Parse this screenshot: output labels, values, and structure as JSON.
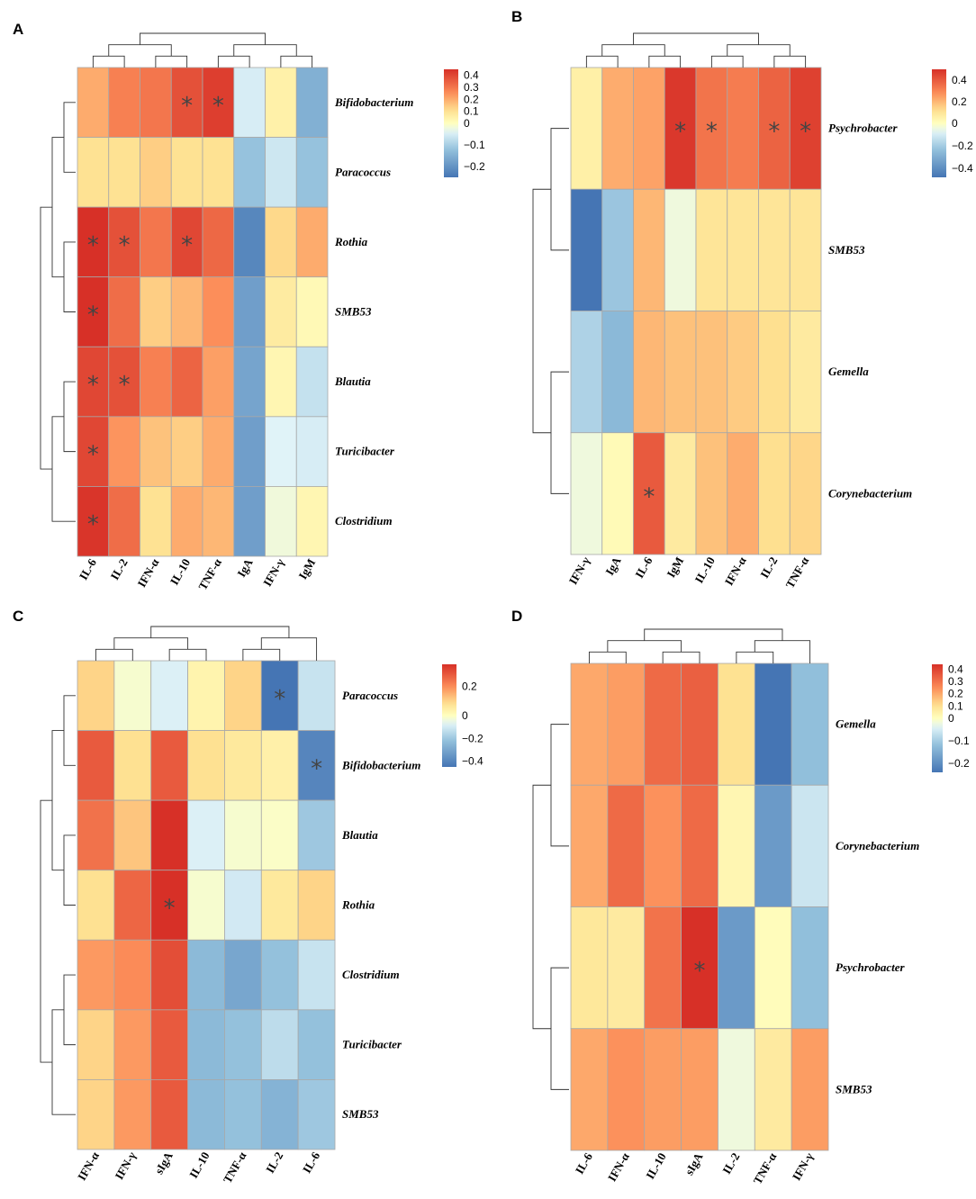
{
  "chart_data": [
    {
      "type": "heatmap",
      "panel": "A",
      "rows": [
        "Bifidobacterium",
        "Paracoccus",
        "Rothia",
        "SMB53",
        "Blautia",
        "Turicibacter",
        "Clostridium"
      ],
      "columns": [
        "IL-6",
        "IL-2",
        "IFN-α",
        "IL-10",
        "TNF-α",
        "IgA",
        "IFN-γ",
        "IgM"
      ],
      "values": [
        [
          0.2,
          0.28,
          0.3,
          0.38,
          0.42,
          -0.05,
          0.05,
          -0.15
        ],
        [
          0.1,
          0.1,
          0.14,
          0.1,
          0.1,
          -0.12,
          -0.06,
          -0.12
        ],
        [
          0.45,
          0.38,
          0.3,
          0.4,
          0.33,
          -0.22,
          0.12,
          0.2
        ],
        [
          0.45,
          0.32,
          0.14,
          0.18,
          0.25,
          -0.18,
          0.07,
          0.02
        ],
        [
          0.4,
          0.38,
          0.28,
          0.34,
          0.22,
          -0.17,
          0.03,
          -0.07
        ],
        [
          0.4,
          0.24,
          0.16,
          0.14,
          0.2,
          -0.18,
          -0.04,
          -0.05
        ],
        [
          0.44,
          0.32,
          0.1,
          0.2,
          0.18,
          -0.18,
          -0.02,
          0.03
        ]
      ],
      "significant": [
        [
          0,
          3
        ],
        [
          0,
          4
        ],
        [
          2,
          0
        ],
        [
          2,
          1
        ],
        [
          2,
          3
        ],
        [
          3,
          0
        ],
        [
          4,
          0
        ],
        [
          4,
          1
        ],
        [
          5,
          0
        ],
        [
          6,
          0
        ]
      ],
      "significance_marker": "*",
      "legend_ticks": [
        "0.4",
        "0.3",
        "0.2",
        "0.1",
        "0",
        "−0.1",
        "−0.2"
      ],
      "legend_tick_values": [
        0.4,
        0.3,
        0.2,
        0.1,
        0,
        -0.1,
        -0.2
      ],
      "vmin": -0.25,
      "vmax": 0.45
    },
    {
      "type": "heatmap",
      "panel": "B",
      "rows": [
        "Psychrobacter",
        "SMB53",
        "Gemella",
        "Corynebacterium"
      ],
      "columns": [
        "IFN-γ",
        "IgA",
        "IL-6",
        "IgM",
        "IL-10",
        "IFN-α",
        "IL-2",
        "TNF-α"
      ],
      "values": [
        [
          0.06,
          0.22,
          0.24,
          0.48,
          0.34,
          0.32,
          0.38,
          0.46
        ],
        [
          -0.48,
          -0.22,
          0.2,
          -0.04,
          0.1,
          0.1,
          0.1,
          0.1
        ],
        [
          -0.18,
          -0.26,
          0.2,
          0.18,
          0.18,
          0.16,
          0.12,
          0.08
        ],
        [
          -0.04,
          0.02,
          0.4,
          0.08,
          0.18,
          0.22,
          0.12,
          0.14
        ]
      ],
      "significant": [
        [
          0,
          3
        ],
        [
          0,
          4
        ],
        [
          0,
          6
        ],
        [
          0,
          7
        ],
        [
          3,
          2
        ]
      ],
      "significance_marker": "*",
      "legend_ticks": [
        "0.4",
        "0.2",
        "0",
        "−0.2",
        "−0.4"
      ],
      "legend_tick_values": [
        0.4,
        0.2,
        0,
        -0.2,
        -0.4
      ],
      "vmin": -0.48,
      "vmax": 0.5
    },
    {
      "type": "heatmap",
      "panel": "C",
      "rows": [
        "Paracoccus",
        "Bifidobacterium",
        "Blautia",
        "Rothia",
        "Clostridium",
        "Turicibacter",
        "SMB53"
      ],
      "columns": [
        "IFN-α",
        "IFN-γ",
        "sIgA",
        "IL-10",
        "TNF-α",
        "IL-2",
        "IL-6"
      ],
      "values": [
        [
          0.1,
          -0.02,
          -0.08,
          0.03,
          0.1,
          -0.45,
          -0.12
        ],
        [
          0.28,
          0.08,
          0.28,
          0.08,
          0.06,
          0.04,
          -0.4
        ],
        [
          0.24,
          0.12,
          0.35,
          -0.08,
          -0.02,
          -0.01,
          -0.2
        ],
        [
          0.08,
          0.26,
          0.37,
          -0.02,
          -0.1,
          0.06,
          0.1
        ],
        [
          0.18,
          0.2,
          0.3,
          -0.24,
          -0.3,
          -0.22,
          -0.12
        ],
        [
          0.1,
          0.18,
          0.28,
          -0.24,
          -0.22,
          -0.14,
          -0.22
        ],
        [
          0.1,
          0.18,
          0.28,
          -0.24,
          -0.22,
          -0.26,
          -0.2
        ]
      ],
      "significant": [
        [
          0,
          5
        ],
        [
          1,
          6
        ],
        [
          3,
          2
        ]
      ],
      "significance_marker": "*",
      "legend_ticks": [
        "0.2",
        "0",
        "−0.2",
        "−0.4"
      ],
      "legend_tick_values": [
        0.2,
        0,
        -0.2,
        -0.4
      ],
      "vmin": -0.45,
      "vmax": 0.35
    },
    {
      "type": "heatmap",
      "panel": "D",
      "rows": [
        "Gemella",
        "Corynebacterium",
        "Psychrobacter",
        "SMB53"
      ],
      "columns": [
        "IL-6",
        "IFN-α",
        "IL-10",
        "sIgA",
        "IL-2",
        "TNF-α",
        "IFN-γ"
      ],
      "values": [
        [
          0.2,
          0.22,
          0.32,
          0.34,
          0.1,
          -0.24,
          -0.12
        ],
        [
          0.2,
          0.32,
          0.24,
          0.32,
          0.03,
          -0.18,
          -0.06
        ],
        [
          0.08,
          0.07,
          0.3,
          0.45,
          -0.18,
          0.01,
          -0.12
        ],
        [
          0.2,
          0.24,
          0.22,
          0.22,
          -0.02,
          0.07,
          0.22
        ]
      ],
      "significant": [
        [
          2,
          3
        ]
      ],
      "significance_marker": "*",
      "legend_ticks": [
        "0.4",
        "0.3",
        "0.2",
        "0.1",
        "0",
        "−0.1",
        "−0.2"
      ],
      "legend_tick_values": [
        0.4,
        0.3,
        0.2,
        0.1,
        0,
        -0.1,
        -0.2
      ],
      "vmin": -0.24,
      "vmax": 0.44
    }
  ]
}
